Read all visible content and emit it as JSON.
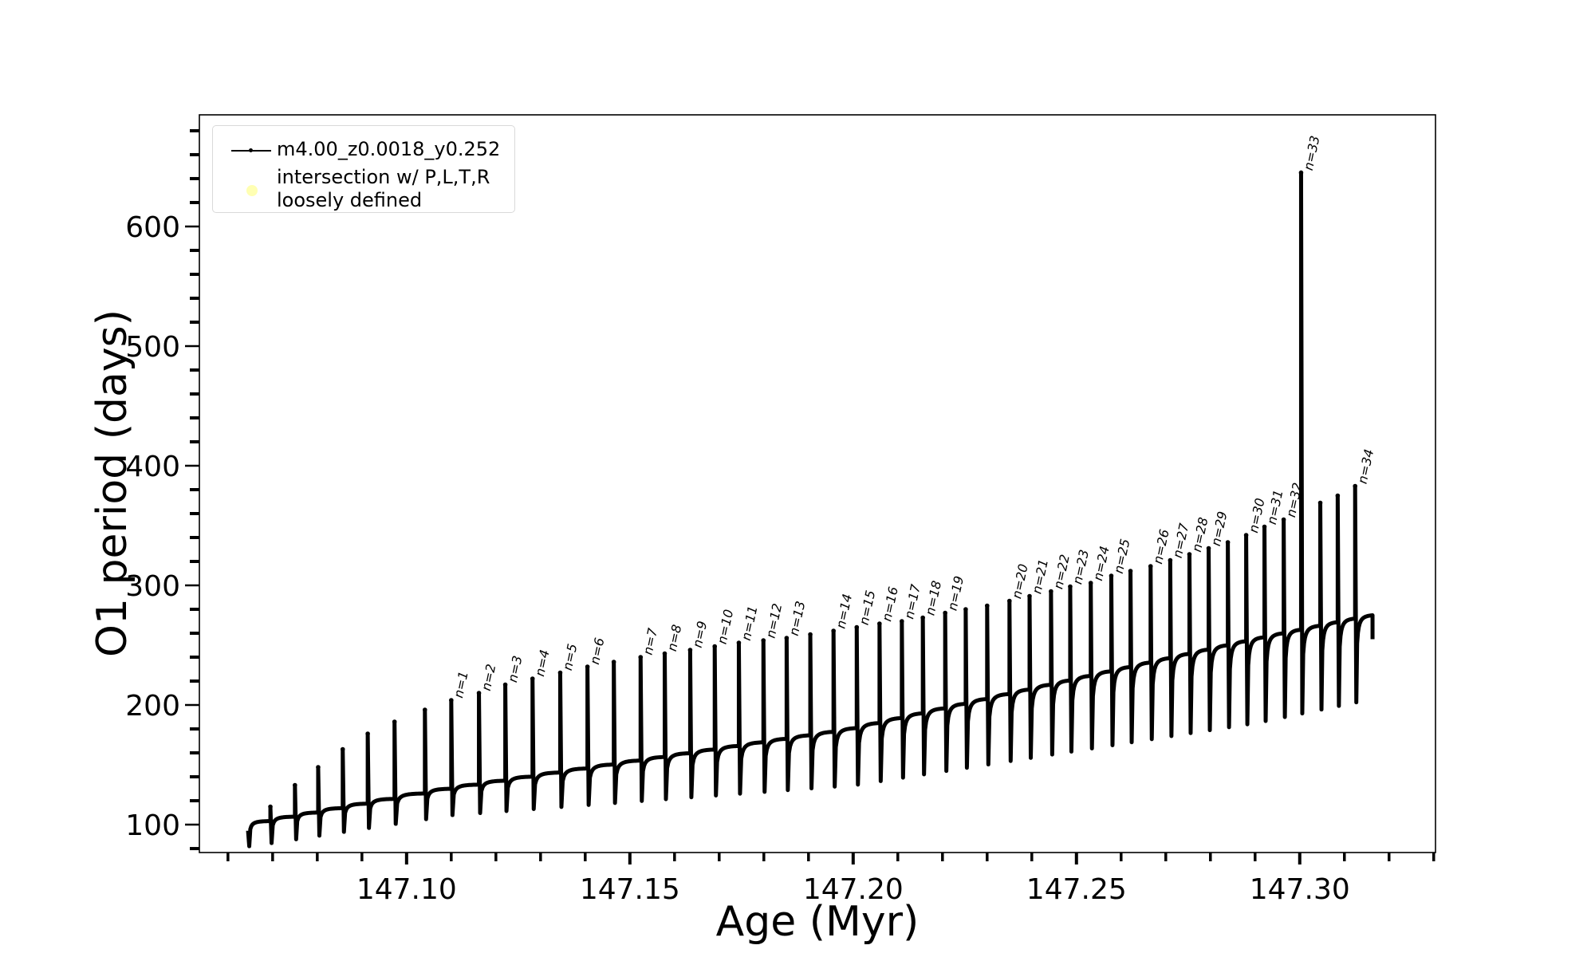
{
  "chart_data": {
    "type": "line",
    "xlabel": "Age (Myr)",
    "ylabel": "O1 period (days)",
    "xlim": [
      147.0536,
      147.3304
    ],
    "ylim": [
      76.7,
      693.3
    ],
    "x_major_ticks": [
      147.1,
      147.15,
      147.2,
      147.25,
      147.3
    ],
    "x_tick_labels": [
      "147.10",
      "147.15",
      "147.20",
      "147.25",
      "147.30"
    ],
    "x_minor_step": 0.01,
    "y_major_ticks": [
      100,
      200,
      300,
      400,
      500,
      600
    ],
    "y_tick_labels": [
      "100",
      "200",
      "300",
      "400",
      "500",
      "600"
    ],
    "y_minor_step": 20,
    "grid": false,
    "legend": {
      "placement": "top-left",
      "entries": [
        {
          "label": "m4.00_z0.0018_y0.252",
          "marker": "line-dot",
          "color": "#000000"
        },
        {
          "label_line1": "intersection w/ P,L,T,R",
          "label_line2": "loosely defined",
          "marker": "circle",
          "color": "#ffffb3"
        }
      ]
    },
    "series": [
      {
        "name": "m4.00_z0.0018_y0.252",
        "color": "#000000",
        "start": [
          147.0645,
          95
        ],
        "end": [
          147.3163,
          277
        ],
        "plateau_curve": [
          [
            147.065,
            100
          ],
          [
            147.11,
            130
          ],
          [
            147.2,
            180
          ],
          [
            147.29,
            255
          ],
          [
            147.316,
            275
          ]
        ],
        "trough_curve": [
          [
            147.065,
            82
          ],
          [
            147.11,
            108
          ],
          [
            147.2,
            133
          ],
          [
            147.29,
            185
          ],
          [
            147.316,
            205
          ]
        ],
        "pulses": [
          [
            147.0695,
            115,
            ""
          ],
          [
            147.075,
            133,
            ""
          ],
          [
            147.0802,
            148,
            ""
          ],
          [
            147.0857,
            163,
            ""
          ],
          [
            147.0913,
            176,
            ""
          ],
          [
            147.0973,
            186,
            ""
          ],
          [
            147.1041,
            196,
            ""
          ],
          [
            147.11,
            204,
            "n=1"
          ],
          [
            147.1162,
            210,
            "n=2"
          ],
          [
            147.1221,
            217,
            "n=3"
          ],
          [
            147.1282,
            222,
            "n=4"
          ],
          [
            147.1344,
            227,
            "n=5"
          ],
          [
            147.1405,
            232,
            "n=6"
          ],
          [
            147.1464,
            236,
            ""
          ],
          [
            147.1524,
            240,
            "n=7"
          ],
          [
            147.1578,
            243,
            "n=8"
          ],
          [
            147.1635,
            246,
            "n=9"
          ],
          [
            147.169,
            249,
            "n=10"
          ],
          [
            147.1744,
            252,
            "n=11"
          ],
          [
            147.1799,
            254,
            "n=12"
          ],
          [
            147.1851,
            256,
            "n=13"
          ],
          [
            147.1904,
            259,
            ""
          ],
          [
            147.1956,
            262,
            "n=14"
          ],
          [
            147.2008,
            265,
            "n=15"
          ],
          [
            147.2059,
            268,
            "n=16"
          ],
          [
            147.2109,
            270,
            "n=17"
          ],
          [
            147.2156,
            273,
            "n=18"
          ],
          [
            147.2206,
            277,
            "n=19"
          ],
          [
            147.2252,
            280,
            ""
          ],
          [
            147.23,
            283,
            ""
          ],
          [
            147.235,
            287,
            "n=20"
          ],
          [
            147.2395,
            291,
            "n=21"
          ],
          [
            147.2443,
            295,
            "n=22"
          ],
          [
            147.2486,
            299,
            "n=23"
          ],
          [
            147.2532,
            302,
            "n=24"
          ],
          [
            147.2578,
            308,
            "n=25"
          ],
          [
            147.2621,
            312,
            ""
          ],
          [
            147.2666,
            316,
            "n=26"
          ],
          [
            147.271,
            321,
            "n=27"
          ],
          [
            147.2753,
            326,
            "n=28"
          ],
          [
            147.2796,
            331,
            "n=29"
          ],
          [
            147.2839,
            336,
            ""
          ],
          [
            147.288,
            342,
            "n=30"
          ],
          [
            147.2921,
            349,
            "n=31"
          ],
          [
            147.2964,
            355,
            "n=32"
          ],
          [
            147.3003,
            645,
            "n=33"
          ],
          [
            147.3046,
            369,
            ""
          ],
          [
            147.3085,
            375,
            ""
          ],
          [
            147.3124,
            383,
            "n=34"
          ]
        ]
      }
    ]
  }
}
